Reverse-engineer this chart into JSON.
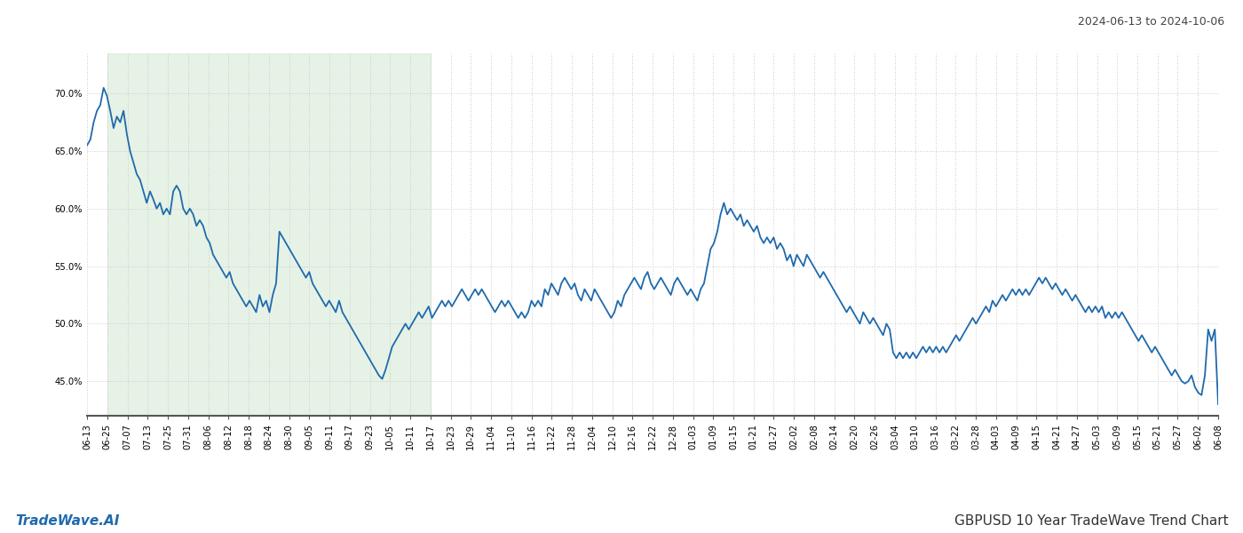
{
  "title_top_right": "2024-06-13 to 2024-10-06",
  "title_bottom_left": "TradeWave.AI",
  "title_bottom_right": "GBPUSD 10 Year TradeWave Trend Chart",
  "line_color": "#1f6aad",
  "line_width": 1.3,
  "shaded_region_color": "#d6ead6",
  "shaded_region_alpha": 0.6,
  "ylim_low": 42.0,
  "ylim_high": 73.5,
  "grid_color": "#cccccc",
  "grid_linestyle": ":",
  "grid_linewidth": 0.7,
  "background_color": "#ffffff",
  "tick_label_fontsize": 7.2,
  "yticks": [
    45.0,
    50.0,
    55.0,
    60.0,
    65.0,
    70.0
  ],
  "x_labels": [
    "06-13",
    "06-25",
    "07-07",
    "07-13",
    "07-25",
    "07-31",
    "08-06",
    "08-12",
    "08-18",
    "08-24",
    "08-30",
    "09-05",
    "09-11",
    "09-17",
    "09-23",
    "10-05",
    "10-11",
    "10-17",
    "10-23",
    "10-29",
    "11-04",
    "11-10",
    "11-16",
    "11-22",
    "11-28",
    "12-04",
    "12-10",
    "12-16",
    "12-22",
    "12-28",
    "01-03",
    "01-09",
    "01-15",
    "01-21",
    "01-27",
    "02-02",
    "02-08",
    "02-14",
    "02-20",
    "02-26",
    "03-04",
    "03-10",
    "03-16",
    "03-22",
    "03-28",
    "04-03",
    "04-09",
    "04-15",
    "04-21",
    "04-27",
    "05-03",
    "05-09",
    "05-15",
    "05-21",
    "05-27",
    "06-02",
    "06-08"
  ],
  "shaded_label_start": "06-25",
  "shaded_label_end": "10-17",
  "values": [
    65.5,
    66.0,
    67.5,
    68.5,
    69.0,
    70.5,
    69.8,
    68.5,
    67.0,
    68.0,
    67.5,
    68.5,
    66.5,
    65.0,
    64.0,
    63.0,
    62.5,
    61.5,
    60.5,
    61.5,
    60.8,
    60.0,
    60.5,
    59.5,
    60.0,
    59.5,
    61.5,
    62.0,
    61.5,
    60.0,
    59.5,
    60.0,
    59.5,
    58.5,
    59.0,
    58.5,
    57.5,
    57.0,
    56.0,
    55.5,
    55.0,
    54.5,
    54.0,
    54.5,
    53.5,
    53.0,
    52.5,
    52.0,
    51.5,
    52.0,
    51.5,
    51.0,
    52.5,
    51.5,
    52.0,
    51.0,
    52.5,
    53.5,
    58.0,
    57.5,
    57.0,
    56.5,
    56.0,
    55.5,
    55.0,
    54.5,
    54.0,
    54.5,
    53.5,
    53.0,
    52.5,
    52.0,
    51.5,
    52.0,
    51.5,
    51.0,
    52.0,
    51.0,
    50.5,
    50.0,
    49.5,
    49.0,
    48.5,
    48.0,
    47.5,
    47.0,
    46.5,
    46.0,
    45.5,
    45.2,
    46.0,
    47.0,
    48.0,
    48.5,
    49.0,
    49.5,
    50.0,
    49.5,
    50.0,
    50.5,
    51.0,
    50.5,
    51.0,
    51.5,
    50.5,
    51.0,
    51.5,
    52.0,
    51.5,
    52.0,
    51.5,
    52.0,
    52.5,
    53.0,
    52.5,
    52.0,
    52.5,
    53.0,
    52.5,
    53.0,
    52.5,
    52.0,
    51.5,
    51.0,
    51.5,
    52.0,
    51.5,
    52.0,
    51.5,
    51.0,
    50.5,
    51.0,
    50.5,
    51.0,
    52.0,
    51.5,
    52.0,
    51.5,
    53.0,
    52.5,
    53.5,
    53.0,
    52.5,
    53.5,
    54.0,
    53.5,
    53.0,
    53.5,
    52.5,
    52.0,
    53.0,
    52.5,
    52.0,
    53.0,
    52.5,
    52.0,
    51.5,
    51.0,
    50.5,
    51.0,
    52.0,
    51.5,
    52.5,
    53.0,
    53.5,
    54.0,
    53.5,
    53.0,
    54.0,
    54.5,
    53.5,
    53.0,
    53.5,
    54.0,
    53.5,
    53.0,
    52.5,
    53.5,
    54.0,
    53.5,
    53.0,
    52.5,
    53.0,
    52.5,
    52.0,
    53.0,
    53.5,
    55.0,
    56.5,
    57.0,
    58.0,
    59.5,
    60.5,
    59.5,
    60.0,
    59.5,
    59.0,
    59.5,
    58.5,
    59.0,
    58.5,
    58.0,
    58.5,
    57.5,
    57.0,
    57.5,
    57.0,
    57.5,
    56.5,
    57.0,
    56.5,
    55.5,
    56.0,
    55.0,
    56.0,
    55.5,
    55.0,
    56.0,
    55.5,
    55.0,
    54.5,
    54.0,
    54.5,
    54.0,
    53.5,
    53.0,
    52.5,
    52.0,
    51.5,
    51.0,
    51.5,
    51.0,
    50.5,
    50.0,
    51.0,
    50.5,
    50.0,
    50.5,
    50.0,
    49.5,
    49.0,
    50.0,
    49.5,
    47.5,
    47.0,
    47.5,
    47.0,
    47.5,
    47.0,
    47.5,
    47.0,
    47.5,
    48.0,
    47.5,
    48.0,
    47.5,
    48.0,
    47.5,
    48.0,
    47.5,
    48.0,
    48.5,
    49.0,
    48.5,
    49.0,
    49.5,
    50.0,
    50.5,
    50.0,
    50.5,
    51.0,
    51.5,
    51.0,
    52.0,
    51.5,
    52.0,
    52.5,
    52.0,
    52.5,
    53.0,
    52.5,
    53.0,
    52.5,
    53.0,
    52.5,
    53.0,
    53.5,
    54.0,
    53.5,
    54.0,
    53.5,
    53.0,
    53.5,
    53.0,
    52.5,
    53.0,
    52.5,
    52.0,
    52.5,
    52.0,
    51.5,
    51.0,
    51.5,
    51.0,
    51.5,
    51.0,
    51.5,
    50.5,
    51.0,
    50.5,
    51.0,
    50.5,
    51.0,
    50.5,
    50.0,
    49.5,
    49.0,
    48.5,
    49.0,
    48.5,
    48.0,
    47.5,
    48.0,
    47.5,
    47.0,
    46.5,
    46.0,
    45.5,
    46.0,
    45.5,
    45.0,
    44.8,
    45.0,
    45.5,
    44.5,
    44.0,
    43.8,
    45.5,
    49.5,
    48.5,
    49.5,
    43.0
  ]
}
